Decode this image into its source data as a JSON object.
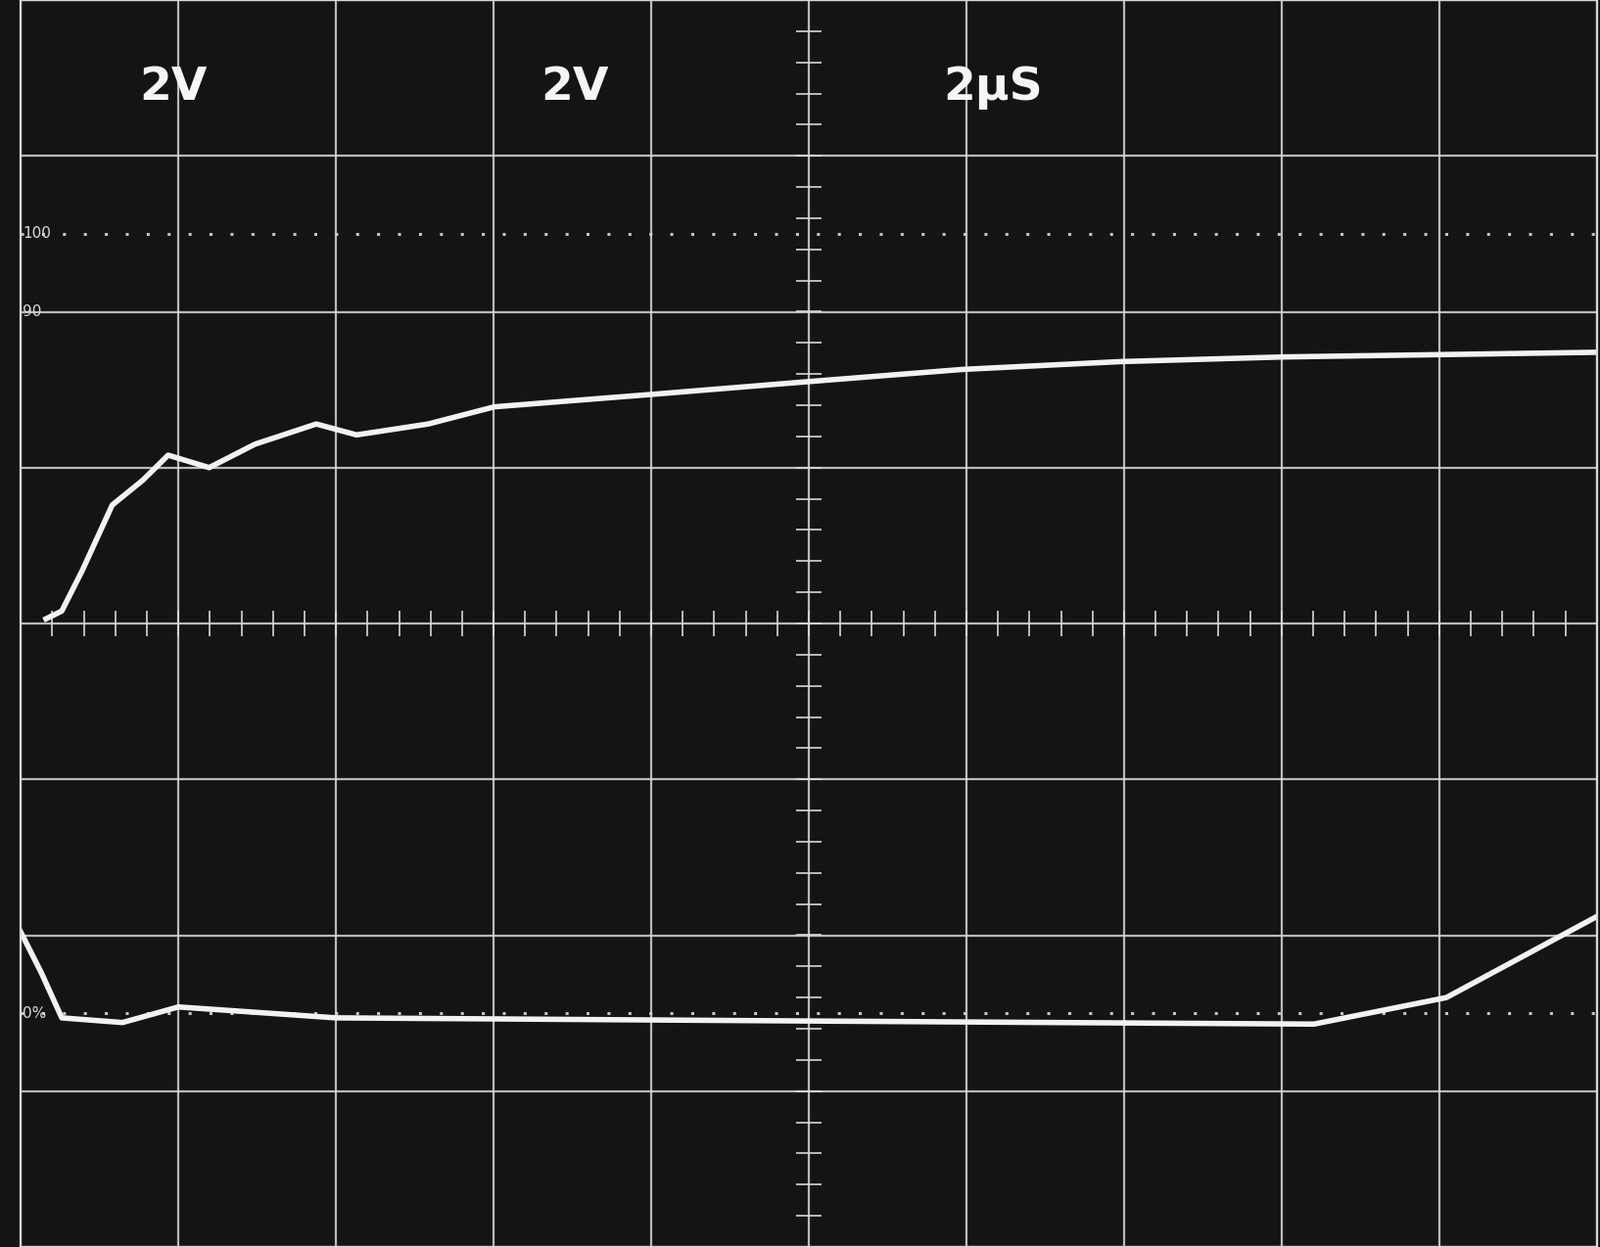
{
  "chart_data": {
    "type": "line",
    "channel_labels": [
      "2V",
      "2V"
    ],
    "timebase_label": "2μS",
    "reference_marks": [
      {
        "value": 2.5,
        "label": "100"
      },
      {
        "value": 2,
        "label": "90"
      },
      {
        "value": -2.5,
        "label": "0%"
      }
    ],
    "series": [
      {
        "color": "#f2f2f2",
        "x": [
          0.32,
          0.52,
          0.78,
          1.16,
          1.55,
          1.87,
          2.39,
          2.97,
          3.75,
          4.26,
          5.17,
          6.01,
          8.01,
          9.95,
          11.95,
          13.95,
          16.02,
          20.0
        ],
        "values": [
          0.03,
          0.08,
          0.34,
          0.76,
          0.92,
          1.08,
          1.0,
          1.15,
          1.28,
          1.21,
          1.28,
          1.39,
          1.47,
          1.55,
          1.63,
          1.68,
          1.71,
          1.74
        ]
      },
      {
        "color": "#f2f2f2",
        "x": [
          0.0,
          0.26,
          0.52,
          1.29,
          2.0,
          4.0,
          9.95,
          16.41,
          18.09,
          20.0
        ],
        "values": [
          -1.98,
          -2.24,
          -2.53,
          -2.56,
          -2.46,
          -2.53,
          -2.55,
          -2.57,
          -2.4,
          -1.88
        ]
      }
    ],
    "xlim": [
      0,
      20
    ],
    "xticks": [
      0,
      2,
      4,
      6,
      8,
      10,
      12,
      14,
      16,
      18,
      20
    ],
    "ylim": [
      -4,
      4
    ],
    "yticks": [
      -4,
      -3,
      -2,
      -1,
      0,
      1,
      2,
      3,
      4
    ],
    "grid": true,
    "tick_labels": false
  }
}
